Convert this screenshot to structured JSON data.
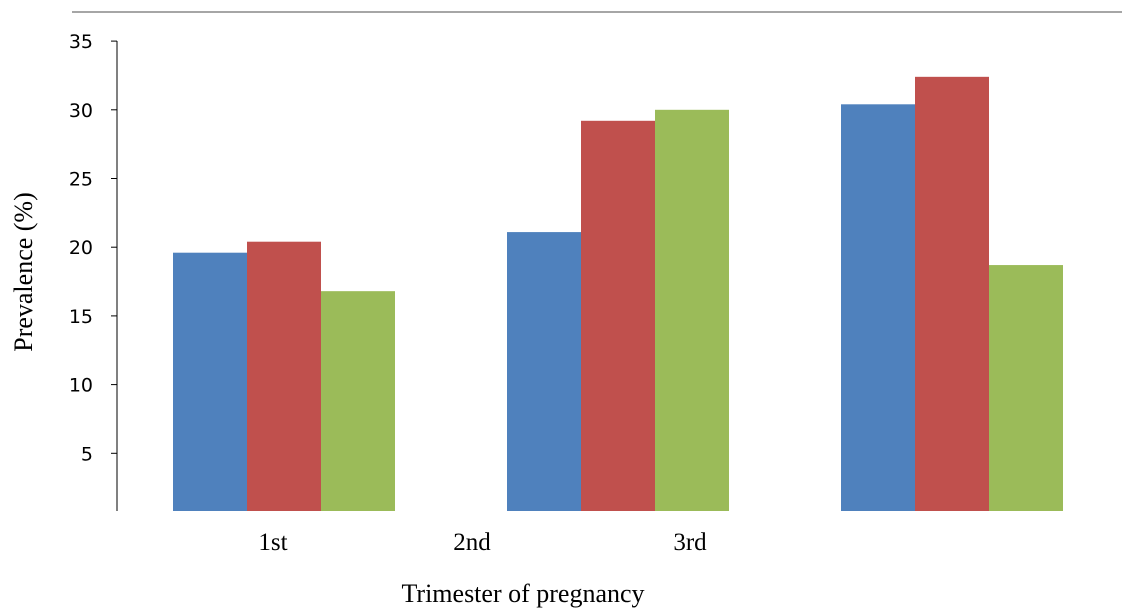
{
  "chart_data": {
    "type": "bar",
    "title": "",
    "xlabel": "Trimester of pregnancy",
    "ylabel": "Prevalence (%)",
    "ylim": [
      0,
      35
    ],
    "yticks": [
      "5",
      "10",
      "15",
      "20",
      "25",
      "30",
      "35"
    ],
    "yticks_display": [
      "5",
      "10",
      "15",
      "20",
      "25",
      "30",
      "35"
    ],
    "xtick_labels": [
      "1st",
      "2nd",
      "3rd"
    ],
    "legend": "none",
    "grid": false,
    "series": [
      {
        "color": "#4F81BD",
        "values": [
          19.6,
          21.1,
          30.4
        ]
      },
      {
        "color": "#C0504D",
        "values": [
          20.4,
          29.2,
          32.4
        ]
      },
      {
        "color": "#9BBB59",
        "values": [
          16.8,
          30.0,
          18.7
        ]
      }
    ]
  }
}
